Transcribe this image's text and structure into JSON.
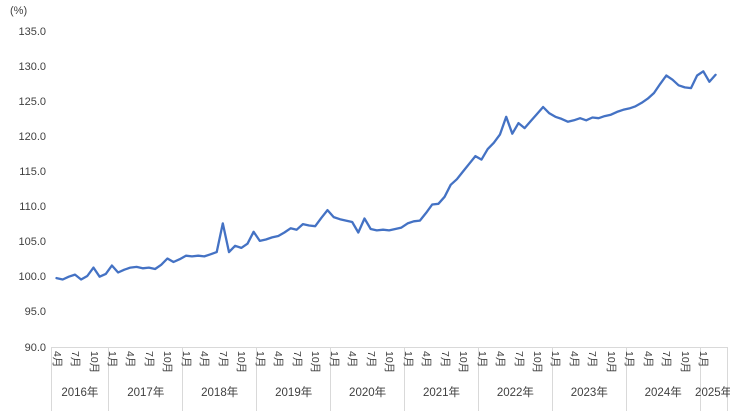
{
  "chart_data": {
    "type": "line",
    "title": "",
    "unit_label": "(%)",
    "ylabel": "",
    "xlabel": "",
    "ylim": [
      90,
      135
    ],
    "y_tick_labels": [
      "135.0",
      "130.0",
      "125.0",
      "120.0",
      "115.0",
      "110.0",
      "105.0",
      "100.0",
      "95.0",
      "90.0"
    ],
    "grid": "off",
    "legend": "none",
    "x_start": {
      "year": 2016,
      "month": 4
    },
    "x_end": {
      "year": 2025,
      "month": 3
    },
    "labeled_months": [
      1,
      4,
      7,
      10
    ],
    "month_suffix": "月",
    "year_suffix": "年",
    "x_tick_labels": [
      "4月",
      "7月",
      "10月",
      "1月",
      "4月",
      "7月",
      "10月",
      "1月",
      "4月",
      "7月",
      "10月",
      "1月",
      "4月",
      "7月",
      "10月",
      "1月",
      "4月",
      "7月",
      "10月",
      "1月",
      "4月",
      "7月",
      "10月",
      "1月",
      "4月",
      "7月",
      "10月",
      "1月",
      "4月",
      "7月",
      "10月",
      "1月",
      "4月",
      "7月",
      "10月",
      "1月"
    ],
    "year_labels": [
      "2016年",
      "2017年",
      "2018年",
      "2019年",
      "2020年",
      "2021年",
      "2022年",
      "2023年",
      "2024年",
      "2025年"
    ],
    "values": [
      99.9,
      99.7,
      100.1,
      100.4,
      99.7,
      100.2,
      101.4,
      100.1,
      100.5,
      101.7,
      100.7,
      101.1,
      101.4,
      101.5,
      101.3,
      101.4,
      101.2,
      101.8,
      102.7,
      102.2,
      102.6,
      103.1,
      103.0,
      103.1,
      103.0,
      103.3,
      103.6,
      107.7,
      103.6,
      104.5,
      104.2,
      104.8,
      106.5,
      105.2,
      105.4,
      105.7,
      105.9,
      106.4,
      107.0,
      106.8,
      107.6,
      107.4,
      107.3,
      108.5,
      109.6,
      108.6,
      108.3,
      108.1,
      107.9,
      106.4,
      108.4,
      106.9,
      106.7,
      106.8,
      106.7,
      106.9,
      107.1,
      107.7,
      108.0,
      108.1,
      109.2,
      110.4,
      110.5,
      111.5,
      113.2,
      114.0,
      115.1,
      116.2,
      117.3,
      116.8,
      118.3,
      119.2,
      120.4,
      122.9,
      120.5,
      122.0,
      121.3,
      122.3,
      123.3,
      124.3,
      123.4,
      122.9,
      122.6,
      122.2,
      122.4,
      122.7,
      122.4,
      122.8,
      122.7,
      123.0,
      123.2,
      123.6,
      123.9,
      124.1,
      124.4,
      124.9,
      125.5,
      126.3,
      127.6,
      128.8,
      128.2,
      127.4,
      127.1,
      127.0,
      128.8,
      129.4,
      127.9,
      128.9
    ],
    "colors": {
      "line": "#4472c4",
      "axis": "#d9d9d9",
      "text": "#404040",
      "background": "#ffffff"
    }
  }
}
